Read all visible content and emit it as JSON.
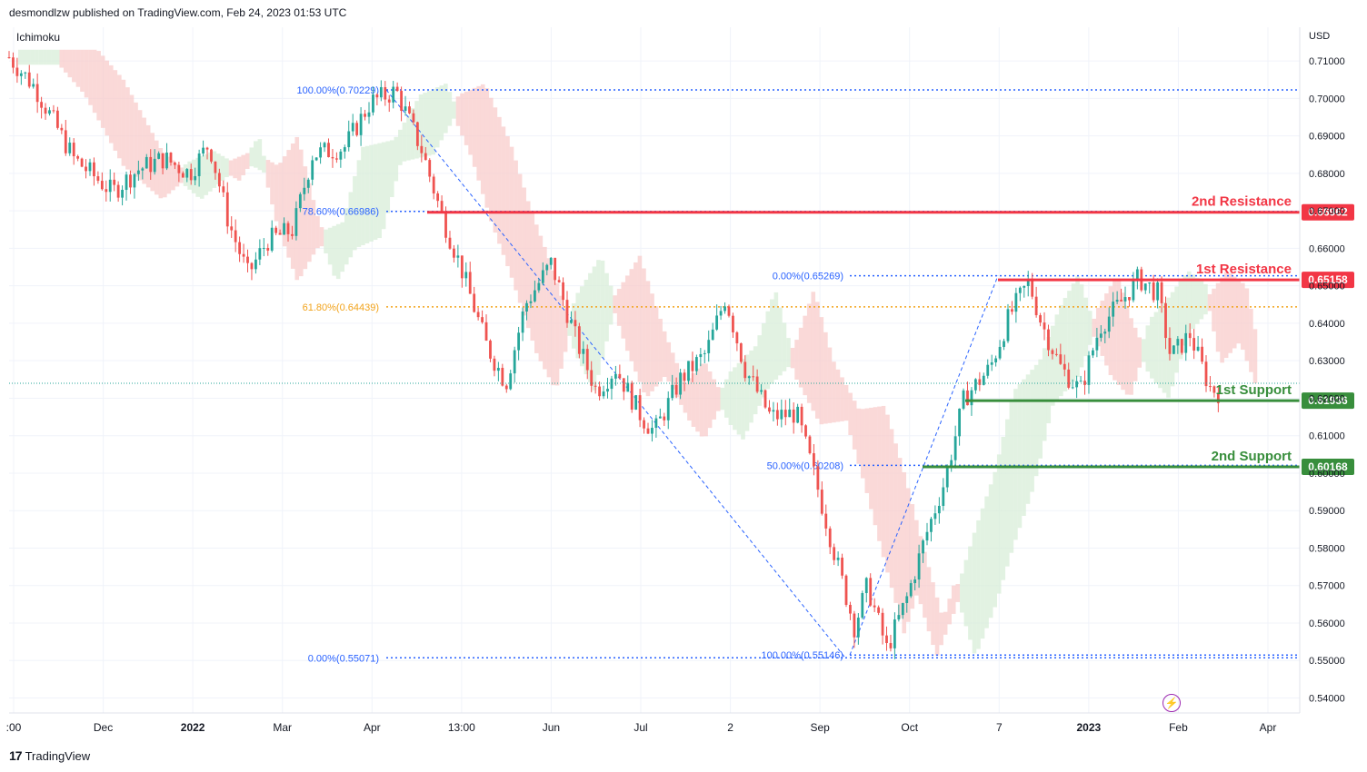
{
  "header": {
    "publisher": "desmondlzw published on TradingView.com, Feb 24, 2023 01:53 UTC",
    "indicator": "Ichimoku",
    "currency": "USD"
  },
  "footer": {
    "brand": "TradingView",
    "logo_icon": "tradingview-logo-icon"
  },
  "colors": {
    "resistance": "#f23645",
    "support": "#388e3c",
    "fib_blue": "#2962ff",
    "fib_orange": "#f2a31b",
    "candle_up": "#26a69a",
    "candle_down": "#ef5350",
    "cloud_red": "#f8c9c7",
    "cloud_green": "#d6ecd6"
  },
  "chart_data": {
    "type": "candlestick",
    "ylim": [
      0.536,
      0.719
    ],
    "y_ticks": [
      "0.54000",
      "0.55000",
      "0.56000",
      "0.57000",
      "0.58000",
      "0.59000",
      "0.60000",
      "0.61000",
      "0.62000",
      "0.63000",
      "0.64000",
      "0.65000",
      "0.66000",
      "0.67000",
      "0.68000",
      "0.69000",
      "0.70000",
      "0.71000"
    ],
    "x_ticks": [
      ":00",
      "Dec",
      "2022",
      "Mar",
      "Apr",
      "13:00",
      "Jun",
      "Jul",
      "2",
      "Sep",
      "Oct",
      "7",
      "2023",
      "Feb",
      "Apr"
    ],
    "levels": [
      {
        "name": "2nd Resistance",
        "value": 0.66962,
        "label": "0.66962",
        "kind": "resistance"
      },
      {
        "name": "1st Resistance",
        "value": 0.65158,
        "label": "0.65158",
        "kind": "resistance"
      },
      {
        "name": "1st Support",
        "value": 0.61936,
        "label": "0.61936",
        "kind": "support"
      },
      {
        "name": "2nd Support",
        "value": 0.60168,
        "label": "0.60168",
        "kind": "support"
      }
    ],
    "fibonacci_upper": [
      {
        "label": "100.00%(0.70229)",
        "value": 0.70229
      },
      {
        "label": "78.60%(0.66986)",
        "value": 0.66986
      },
      {
        "label": "61.80%(0.64439)",
        "value": 0.64439,
        "highlight": true
      },
      {
        "label": "0.00%(0.55071)",
        "value": 0.55071
      }
    ],
    "fibonacci_lower": [
      {
        "label": "0.00%(0.65269)",
        "value": 0.65269
      },
      {
        "label": "50.00%(0.60208)",
        "value": 0.60208
      },
      {
        "label": "100.00%(0.55146)",
        "value": 0.55146
      }
    ],
    "last_price": 0.624,
    "price_path": [
      [
        0.0,
        0.711
      ],
      [
        0.02,
        0.703
      ],
      [
        0.05,
        0.684
      ],
      [
        0.08,
        0.675
      ],
      [
        0.1,
        0.681
      ],
      [
        0.12,
        0.684
      ],
      [
        0.14,
        0.68
      ],
      [
        0.155,
        0.688
      ],
      [
        0.17,
        0.667
      ],
      [
        0.185,
        0.653
      ],
      [
        0.2,
        0.662
      ],
      [
        0.22,
        0.665
      ],
      [
        0.235,
        0.685
      ],
      [
        0.26,
        0.687
      ],
      [
        0.28,
        0.699
      ],
      [
        0.3,
        0.702
      ],
      [
        0.32,
        0.686
      ],
      [
        0.335,
        0.669
      ],
      [
        0.35,
        0.655
      ],
      [
        0.37,
        0.634
      ],
      [
        0.385,
        0.624
      ],
      [
        0.4,
        0.645
      ],
      [
        0.42,
        0.656
      ],
      [
        0.44,
        0.635
      ],
      [
        0.455,
        0.622
      ],
      [
        0.47,
        0.628
      ],
      [
        0.49,
        0.615
      ],
      [
        0.5,
        0.611
      ],
      [
        0.52,
        0.625
      ],
      [
        0.54,
        0.632
      ],
      [
        0.555,
        0.647
      ],
      [
        0.57,
        0.628
      ],
      [
        0.59,
        0.615
      ],
      [
        0.61,
        0.616
      ],
      [
        0.625,
        0.598
      ],
      [
        0.64,
        0.578
      ],
      [
        0.655,
        0.559
      ],
      [
        0.665,
        0.57
      ],
      [
        0.68,
        0.553
      ],
      [
        0.695,
        0.566
      ],
      [
        0.71,
        0.583
      ],
      [
        0.725,
        0.598
      ],
      [
        0.74,
        0.62
      ],
      [
        0.76,
        0.628
      ],
      [
        0.775,
        0.642
      ],
      [
        0.79,
        0.651
      ],
      [
        0.8,
        0.64
      ],
      [
        0.815,
        0.628
      ],
      [
        0.83,
        0.622
      ],
      [
        0.845,
        0.639
      ],
      [
        0.86,
        0.645
      ],
      [
        0.875,
        0.652
      ],
      [
        0.89,
        0.648
      ],
      [
        0.9,
        0.631
      ],
      [
        0.915,
        0.637
      ],
      [
        0.93,
        0.623
      ],
      [
        0.94,
        0.621
      ]
    ]
  }
}
